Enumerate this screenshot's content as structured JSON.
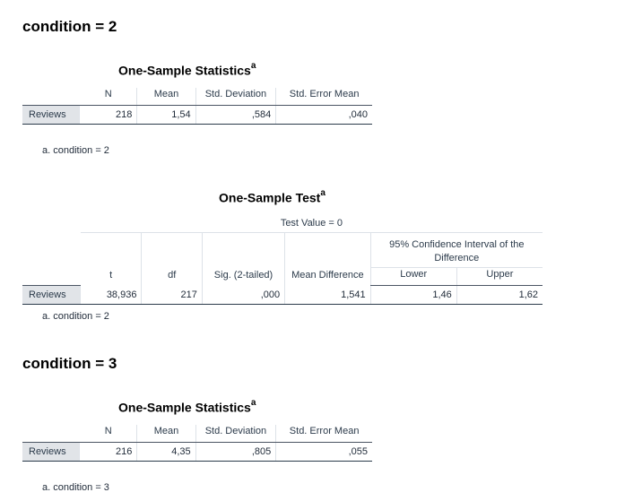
{
  "sections": [
    {
      "title": "condition = 2",
      "stats": {
        "title": "One-Sample Statistics",
        "sup": "a",
        "headers": [
          "N",
          "Mean",
          "Std. Deviation",
          "Std. Error Mean"
        ],
        "row_label": "Reviews",
        "values": [
          "218",
          "1,54",
          ",584",
          ",040"
        ],
        "footnote": "a. condition = 2"
      },
      "test": {
        "title": "One-Sample Test",
        "sup": "a",
        "test_value": "Test Value = 0",
        "ci_header": "95% Confidence Interval of the Difference",
        "headers": [
          "t",
          "df",
          "Sig. (2-tailed)",
          "Mean Difference",
          "Lower",
          "Upper"
        ],
        "row_label": "Reviews",
        "values": [
          "38,936",
          "217",
          ",000",
          "1,541",
          "1,46",
          "1,62"
        ],
        "footnote": "a. condition = 2"
      }
    },
    {
      "title": "condition = 3",
      "stats": {
        "title": "One-Sample Statistics",
        "sup": "a",
        "headers": [
          "N",
          "Mean",
          "Std. Deviation",
          "Std. Error Mean"
        ],
        "row_label": "Reviews",
        "values": [
          "216",
          "4,35",
          ",805",
          ",055"
        ],
        "footnote": "a. condition = 3"
      }
    }
  ]
}
